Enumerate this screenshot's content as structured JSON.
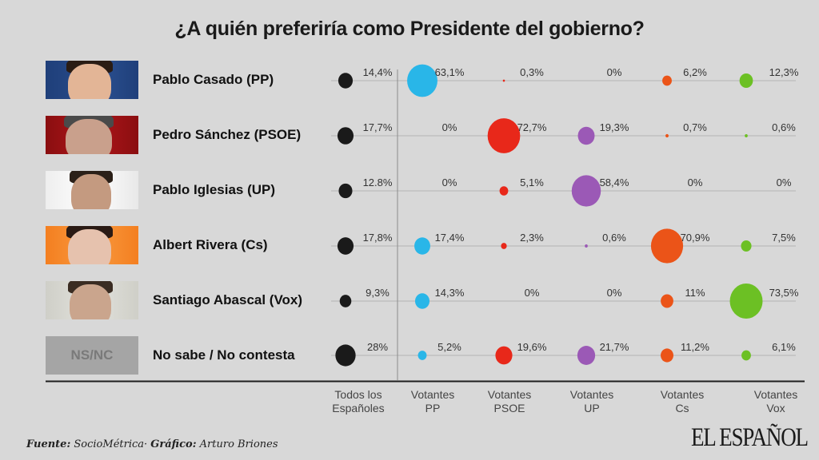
{
  "title": "¿A quién preferiría como Presidente del gobierno?",
  "rows": [
    {
      "label": "Pablo Casado (PP)",
      "photo": "pablo-casado-photo"
    },
    {
      "label": "Pedro Sánchez (PSOE)",
      "photo": "pedro-sanchez-photo"
    },
    {
      "label": "Pablo Iglesias (UP)",
      "photo": "pablo-iglesias-photo"
    },
    {
      "label": "Albert Rivera (Cs)",
      "photo": "albert-rivera-photo"
    },
    {
      "label": "Santiago Abascal (Vox)",
      "photo": "santiago-abascal-photo"
    },
    {
      "label": "No sabe / No contesta",
      "photo": "nsnc-box",
      "box_text": "NS/NC"
    }
  ],
  "columns": [
    {
      "line1": "Todos los",
      "line2": "Españoles",
      "color": "#1a1a1a"
    },
    {
      "line1": "Votantes",
      "line2": "PP",
      "color": "#29b6e8"
    },
    {
      "line1": "Votantes",
      "line2": "PSOE",
      "color": "#e8281a"
    },
    {
      "line1": "Votantes",
      "line2": "UP",
      "color": "#9b59b6"
    },
    {
      "line1": "Votantes",
      "line2": "Cs",
      "color": "#eb5418"
    },
    {
      "line1": "Votantes",
      "line2": "Vox",
      "color": "#6cc024"
    }
  ],
  "footer": {
    "source_label": "Fuente:",
    "source": "SocioMétrica·",
    "graphic_label": "Gráfico:",
    "graphic": "Arturo Briones"
  },
  "logo": "EL ESPAÑOL",
  "chart_data": {
    "type": "bubble-matrix",
    "title": "¿A quién preferiría como Presidente del gobierno?",
    "rows": [
      "Pablo Casado (PP)",
      "Pedro Sánchez (PSOE)",
      "Pablo Iglesias (UP)",
      "Albert Rivera (Cs)",
      "Santiago Abascal (Vox)",
      "No sabe / No contesta"
    ],
    "columns": [
      "Todos los Españoles",
      "Votantes PP",
      "Votantes PSOE",
      "Votantes UP",
      "Votantes Cs",
      "Votantes Vox"
    ],
    "values": [
      [
        14.4,
        63.1,
        0.3,
        0,
        6.2,
        12.3
      ],
      [
        17.7,
        0,
        72.7,
        19.3,
        0.7,
        0.6
      ],
      [
        12.8,
        0,
        5.1,
        58.4,
        0,
        0
      ],
      [
        17.8,
        17.4,
        2.3,
        0.6,
        70.9,
        7.5
      ],
      [
        9.3,
        14.3,
        0,
        0,
        11,
        73.5
      ],
      [
        28,
        5.2,
        19.6,
        21.7,
        11.2,
        6.1
      ]
    ],
    "labels": [
      [
        "14,4%",
        "63,1%",
        "0,3%",
        "0%",
        "6,2%",
        "12,3%"
      ],
      [
        "17,7%",
        "0%",
        "72,7%",
        "19,3%",
        "0,7%",
        "0,6%"
      ],
      [
        "12.8%",
        "0%",
        "5,1%",
        "58,4%",
        "0%",
        "0%"
      ],
      [
        "17,8%",
        "17,4%",
        "2,3%",
        "0,6%",
        "70,9%",
        "7,5%"
      ],
      [
        "9,3%",
        "14,3%",
        "0%",
        "0%",
        "11%",
        "73,5%"
      ],
      [
        "28%",
        "5,2%",
        "19,6%",
        "21,7%",
        "11,2%",
        "6,1%"
      ]
    ],
    "unit": "%"
  }
}
